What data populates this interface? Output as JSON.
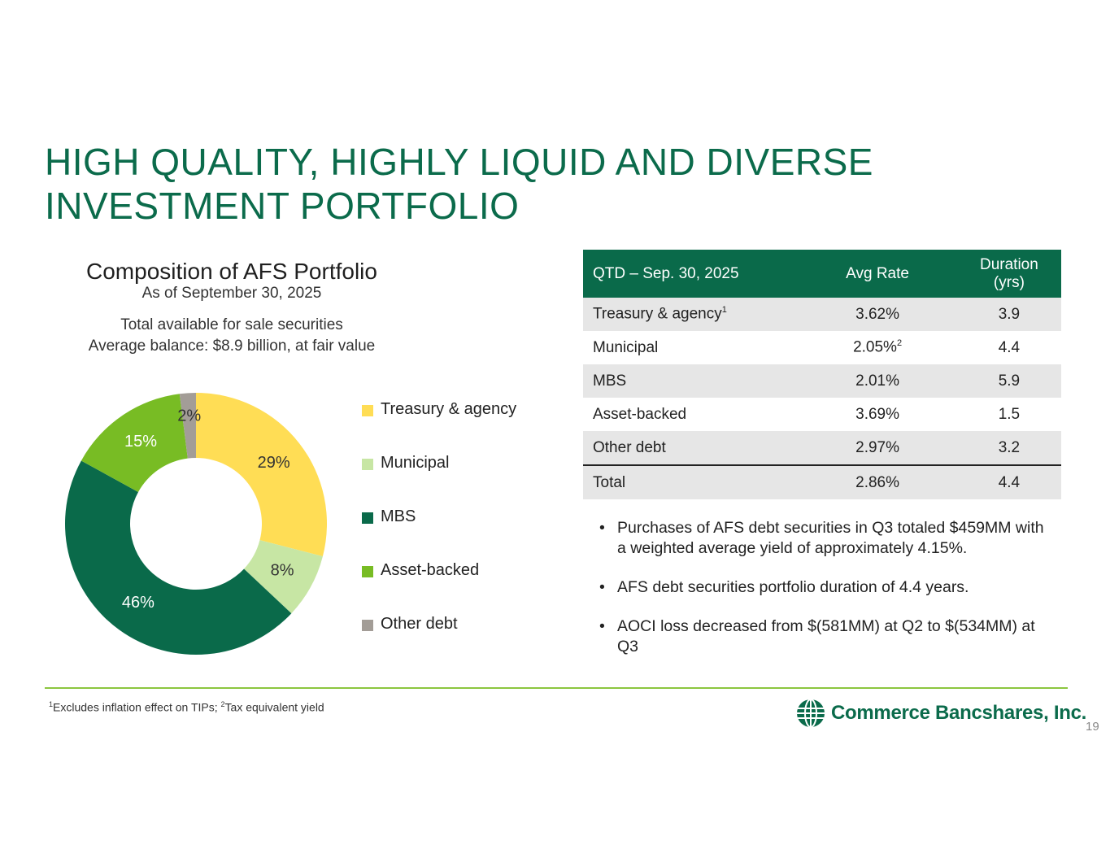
{
  "title": {
    "line1": "HIGH QUALITY, HIGHLY LIQUID AND DIVERSE",
    "line2": "INVESTMENT PORTFOLIO"
  },
  "composition": {
    "title": "Composition of AFS Portfolio",
    "subtitle": "As of September 30, 2025",
    "note_line1": "Total available for sale securities",
    "note_line2": "Average balance: $8.9 billion, at fair value"
  },
  "chart_data": {
    "type": "pie",
    "variant": "donut",
    "title": "Composition of AFS Portfolio",
    "categories": [
      "Treasury & agency",
      "Municipal",
      "MBS",
      "Asset-backed",
      "Other debt"
    ],
    "values": [
      29,
      8,
      46,
      15,
      2
    ],
    "labels": [
      "29%",
      "8%",
      "46%",
      "15%",
      "2%"
    ],
    "colors": [
      "#ffdd55",
      "#c7e6a4",
      "#0a6a4a",
      "#78bc24",
      "#a39d97"
    ],
    "label_colors": [
      "#333333",
      "#333333",
      "#ffffff",
      "#ffffff",
      "#333333"
    ],
    "legend_position": "right"
  },
  "table": {
    "headers": [
      "QTD – Sep. 30, 2025",
      "Avg Rate",
      "Duration",
      "(yrs)"
    ],
    "rows": [
      {
        "label": "Treasury & agency",
        "label_sup": "1",
        "rate": "3.62%",
        "rate_sup": "",
        "duration": "3.9"
      },
      {
        "label": "Municipal",
        "label_sup": "",
        "rate": "2.05%",
        "rate_sup": "2",
        "duration": "4.4"
      },
      {
        "label": "MBS",
        "label_sup": "",
        "rate": "2.01%",
        "rate_sup": "",
        "duration": "5.9"
      },
      {
        "label": "Asset-backed",
        "label_sup": "",
        "rate": "3.69%",
        "rate_sup": "",
        "duration": "1.5"
      },
      {
        "label": "Other debt",
        "label_sup": "",
        "rate": "2.97%",
        "rate_sup": "",
        "duration": "3.2"
      },
      {
        "label": "Total",
        "label_sup": "",
        "rate": "2.86%",
        "rate_sup": "",
        "duration": "4.4"
      }
    ]
  },
  "bullets": [
    "Purchases of AFS debt securities in Q3 totaled $459MM with a weighted average yield of approximately 4.15%.",
    "AFS debt securities portfolio duration of 4.4 years.",
    "AOCI loss decreased from $(581MM) at Q2 to $(534MM) at Q3"
  ],
  "bullet_symbol": "•",
  "footnote": {
    "sup1": "1",
    "text1": "Excludes inflation effect on TIPs; ",
    "sup2": "2",
    "text2": "Tax equivalent yield"
  },
  "logo": {
    "text": "Commerce Bancshares, Inc.",
    "icon": "globe-icon"
  },
  "page_number": "19"
}
